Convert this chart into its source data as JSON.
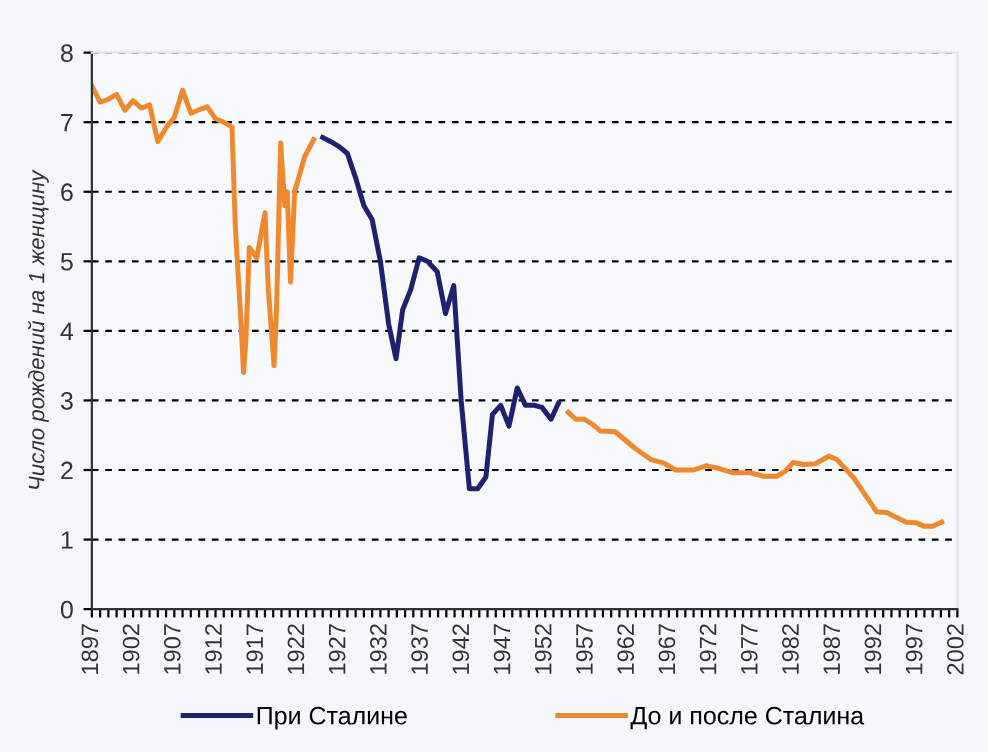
{
  "chart_data": {
    "type": "line",
    "ylabel": "Число рождений на 1 женщину",
    "xlim": [
      1897,
      2002
    ],
    "ylim": [
      0,
      8
    ],
    "yticks": [
      0,
      1,
      2,
      3,
      4,
      5,
      6,
      7,
      8
    ],
    "xticks": [
      1897,
      {
        "value": 1898,
        "label": null
      },
      {
        "value": 1899,
        "label": null
      },
      {
        "value": 1900,
        "label": null
      },
      {
        "value": 1901,
        "label": null
      },
      1902,
      {
        "value": 1903,
        "label": null
      },
      {
        "value": 1904,
        "label": null
      },
      {
        "value": 1905,
        "label": null
      },
      {
        "value": 1906,
        "label": null
      },
      1907,
      {
        "value": 1908,
        "label": null
      },
      {
        "value": 1909,
        "label": null
      },
      {
        "value": 1910,
        "label": null
      },
      {
        "value": 1911,
        "label": null
      },
      1912,
      {
        "value": 1913,
        "label": null
      },
      {
        "value": 1914,
        "label": null
      },
      {
        "value": 1915,
        "label": null
      },
      {
        "value": 1916,
        "label": null
      },
      1917,
      {
        "value": 1918,
        "label": null
      },
      {
        "value": 1919,
        "label": null
      },
      {
        "value": 1920,
        "label": null
      },
      {
        "value": 1921,
        "label": null
      },
      1922,
      {
        "value": 1923,
        "label": null
      },
      {
        "value": 1924,
        "label": null
      },
      {
        "value": 1925,
        "label": null
      },
      {
        "value": 1926,
        "label": null
      },
      1927,
      {
        "value": 1928,
        "label": null
      },
      {
        "value": 1929,
        "label": null
      },
      {
        "value": 1930,
        "label": null
      },
      {
        "value": 1931,
        "label": null
      },
      1932,
      {
        "value": 1933,
        "label": null
      },
      {
        "value": 1934,
        "label": null
      },
      {
        "value": 1935,
        "label": null
      },
      {
        "value": 1936,
        "label": null
      },
      1937,
      {
        "value": 1938,
        "label": null
      },
      {
        "value": 1939,
        "label": null
      },
      {
        "value": 1940,
        "label": null
      },
      {
        "value": 1941,
        "label": null
      },
      1942,
      {
        "value": 1943,
        "label": null
      },
      {
        "value": 1944,
        "label": null
      },
      {
        "value": 1945,
        "label": null
      },
      {
        "value": 1946,
        "label": null
      },
      1947,
      {
        "value": 1948,
        "label": null
      },
      {
        "value": 1949,
        "label": null
      },
      {
        "value": 1950,
        "label": null
      },
      {
        "value": 1951,
        "label": null
      },
      1952,
      {
        "value": 1953,
        "label": null
      },
      {
        "value": 1954,
        "label": null
      },
      {
        "value": 1955,
        "label": null
      },
      {
        "value": 1956,
        "label": null
      },
      1957,
      {
        "value": 1958,
        "label": null
      },
      {
        "value": 1959,
        "label": null
      },
      {
        "value": 1960,
        "label": null
      },
      {
        "value": 1961,
        "label": null
      },
      1962,
      {
        "value": 1963,
        "label": null
      },
      {
        "value": 1964,
        "label": null
      },
      {
        "value": 1965,
        "label": null
      },
      {
        "value": 1966,
        "label": null
      },
      1967,
      {
        "value": 1968,
        "label": null
      },
      {
        "value": 1969,
        "label": null
      },
      {
        "value": 1970,
        "label": null
      },
      {
        "value": 1971,
        "label": null
      },
      1972,
      {
        "value": 1973,
        "label": null
      },
      {
        "value": 1974,
        "label": null
      },
      {
        "value": 1975,
        "label": null
      },
      {
        "value": 1976,
        "label": null
      },
      1977,
      {
        "value": 1978,
        "label": null
      },
      {
        "value": 1979,
        "label": null
      },
      {
        "value": 1980,
        "label": null
      },
      {
        "value": 1981,
        "label": null
      },
      1982,
      {
        "value": 1983,
        "label": null
      },
      {
        "value": 1984,
        "label": null
      },
      {
        "value": 1985,
        "label": null
      },
      {
        "value": 1986,
        "label": null
      },
      1987,
      {
        "value": 1988,
        "label": null
      },
      {
        "value": 1989,
        "label": null
      },
      {
        "value": 1990,
        "label": null
      },
      {
        "value": 1991,
        "label": null
      },
      1992,
      {
        "value": 1993,
        "label": null
      },
      {
        "value": 1994,
        "label": null
      },
      {
        "value": 1995,
        "label": null
      },
      {
        "value": 1996,
        "label": null
      },
      1997,
      {
        "value": 1998,
        "label": null
      },
      {
        "value": 1999,
        "label": null
      },
      {
        "value": 2000,
        "label": null
      },
      {
        "value": 2001,
        "label": null
      },
      2002
    ],
    "grid": "y",
    "legend": "bottom",
    "marker": "none",
    "line_style": "solid",
    "series": [
      {
        "name": "При Сталине",
        "color": "#1f2170",
        "x": [
          1925.0,
          1926.0,
          1927.0,
          1928.0,
          1929.0,
          1930.0,
          1931.0,
          1932.0,
          1933.0,
          1933.9,
          1934.7,
          1935.7,
          1936.7,
          1937.7,
          1938.9,
          1939.9,
          1940.9,
          1941.8,
          1942.8,
          1943.8,
          1944.8,
          1945.6,
          1946.6,
          1947.6,
          1948.6,
          1949.6,
          1950.7,
          1951.6,
          1952.7,
          1953.6
        ],
        "values": [
          6.78,
          6.72,
          6.65,
          6.55,
          6.2,
          5.8,
          5.6,
          5.0,
          4.1,
          3.6,
          4.3,
          4.6,
          5.05,
          5.0,
          4.85,
          4.25,
          4.65,
          3.0,
          1.73,
          1.73,
          1.9,
          2.8,
          2.93,
          2.63,
          3.18,
          2.93,
          2.93,
          2.9,
          2.73,
          2.96
        ]
      },
      {
        "name": "До и после Сталина",
        "color": "#f0892e",
        "x": [
          1897,
          1898,
          1899,
          1900,
          1901,
          1902,
          1903,
          1904,
          1905,
          1906,
          1907,
          1908,
          1909,
          1910,
          1911,
          1912,
          1913,
          1914,
          1914.4,
          1915.1,
          1915.4,
          1915.7,
          1916.1,
          1917.0,
          1918.0,
          1918.4,
          1919.1,
          1919.4,
          1919.9,
          1920.4,
          1920.7,
          1921.1,
          1921.6,
          1922.8,
          1923.9,
          1940,
          1954.8,
          1955.7,
          1956.7,
          1957.7,
          1958.7,
          1960.5,
          1962.8,
          1964.8,
          1966.4,
          1967.8,
          1970.0,
          1971.5,
          1972.8,
          1974.8,
          1976.9,
          1978.5,
          1980.1,
          1981.1,
          1982.1,
          1983.3,
          1984.8,
          1986.4,
          1987.4,
          1989.4,
          1992.2,
          1993.4,
          1995.8,
          1997.0,
          1998.0,
          1999.0,
          2000.1
        ],
        "values": [
          7.52,
          7.29,
          7.33,
          7.4,
          7.17,
          7.31,
          7.2,
          7.25,
          6.72,
          6.92,
          7.07,
          7.46,
          7.13,
          7.18,
          7.22,
          7.05,
          7.0,
          6.93,
          5.5,
          4.1,
          3.4,
          3.9,
          5.2,
          5.05,
          5.7,
          4.6,
          3.5,
          4.3,
          6.7,
          5.8,
          6.0,
          4.7,
          6.0,
          6.5,
          6.75,
          null,
          2.83,
          2.73,
          2.73,
          2.66,
          2.56,
          2.55,
          2.32,
          2.15,
          2.1,
          2.0,
          2.0,
          2.06,
          2.03,
          1.96,
          1.96,
          1.91,
          1.91,
          1.98,
          2.11,
          2.08,
          2.09,
          2.2,
          2.15,
          1.89,
          1.4,
          1.39,
          1.25,
          1.24,
          1.19,
          1.19,
          1.25
        ]
      }
    ]
  }
}
